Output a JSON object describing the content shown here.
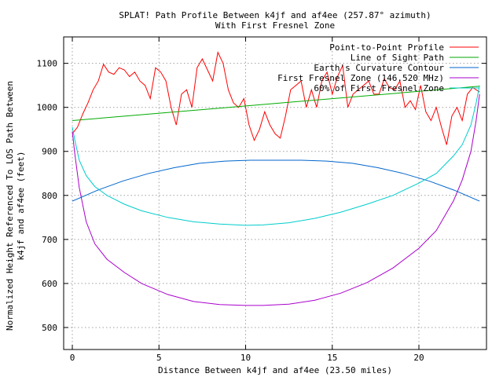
{
  "chart_data": {
    "type": "line",
    "title": "SPLAT! Path Profile Between k4jf and af4ee (257.87° azimuth)",
    "subtitle": "With First Fresnel Zone",
    "xlabel": "Distance Between k4jf and af4ee (23.50 miles)",
    "ylabel_line1": "Normalized Height Referenced To LOS Path Between",
    "ylabel_line2": "k4jf and af4ee (feet)",
    "xlim": [
      -0.5,
      23.9
    ],
    "ylim": [
      450,
      1160
    ],
    "x_ticks": [
      0,
      5,
      10,
      15,
      20
    ],
    "y_ticks": [
      500,
      600,
      700,
      800,
      900,
      1000,
      1100
    ],
    "grid": true,
    "legend_position": "top-right",
    "series": [
      {
        "name": "Point-to-Point Profile",
        "color": "#ff0000",
        "x": [
          0,
          0.3,
          0.6,
          0.9,
          1.2,
          1.5,
          1.8,
          2.1,
          2.4,
          2.7,
          3.0,
          3.3,
          3.6,
          3.9,
          4.2,
          4.5,
          4.8,
          5.1,
          5.4,
          5.7,
          6.0,
          6.3,
          6.6,
          6.9,
          7.2,
          7.5,
          7.8,
          8.1,
          8.4,
          8.7,
          9.0,
          9.3,
          9.6,
          9.9,
          10.2,
          10.5,
          10.8,
          11.1,
          11.4,
          11.7,
          12.0,
          12.3,
          12.6,
          12.9,
          13.2,
          13.5,
          13.8,
          14.1,
          14.4,
          14.7,
          15.0,
          15.3,
          15.6,
          15.9,
          16.2,
          16.5,
          16.8,
          17.1,
          17.4,
          17.7,
          18.0,
          18.3,
          18.6,
          18.9,
          19.2,
          19.5,
          19.8,
          20.1,
          20.4,
          20.7,
          21.0,
          21.3,
          21.6,
          21.9,
          22.2,
          22.5,
          22.8,
          23.1,
          23.5
        ],
        "values": [
          940,
          955,
          985,
          1010,
          1040,
          1060,
          1098,
          1080,
          1075,
          1090,
          1085,
          1070,
          1080,
          1060,
          1050,
          1020,
          1090,
          1080,
          1060,
          1000,
          960,
          1030,
          1040,
          1000,
          1090,
          1110,
          1085,
          1060,
          1125,
          1100,
          1040,
          1010,
          1000,
          1020,
          960,
          925,
          950,
          990,
          960,
          940,
          930,
          980,
          1040,
          1050,
          1060,
          1000,
          1040,
          1000,
          1060,
          1080,
          1030,
          1070,
          1095,
          1000,
          1030,
          1040,
          1050,
          1060,
          1030,
          1030,
          1065,
          1045,
          1040,
          1060,
          1000,
          1015,
          995,
          1050,
          990,
          970,
          1000,
          955,
          915,
          980,
          1000,
          970,
          1030,
          1045,
          1035
        ]
      },
      {
        "name": "Line of Sight Path",
        "color": "#00aa00",
        "x": [
          0,
          23.5
        ],
        "values": [
          970,
          1048
        ]
      },
      {
        "name": "Earth's Curvature Contour",
        "color": "#0066cc",
        "x": [
          0,
          1.47,
          2.94,
          4.41,
          5.88,
          7.34,
          8.81,
          10.28,
          11.75,
          13.22,
          14.69,
          16.16,
          17.63,
          19.09,
          20.56,
          22.03,
          23.5
        ],
        "values": [
          787,
          812,
          833,
          850,
          863,
          873,
          878,
          880,
          880,
          880,
          878,
          873,
          863,
          850,
          833,
          812,
          787
        ]
      },
      {
        "name": "First Fresnel Zone (146.520 MHz)",
        "color": "#aa00cc",
        "x": [
          0,
          0.15,
          0.4,
          0.8,
          1.3,
          2.0,
          3.0,
          4.0,
          5.5,
          7.0,
          8.5,
          10.0,
          11.0,
          12.5,
          14.0,
          15.5,
          17.0,
          18.5,
          20.0,
          21.0,
          22.0,
          22.5,
          23.0,
          23.3,
          23.5
        ],
        "values": [
          945,
          893,
          818,
          740,
          690,
          655,
          625,
          600,
          575,
          559,
          552,
          550,
          550,
          553,
          562,
          578,
          602,
          635,
          680,
          720,
          788,
          835,
          900,
          970,
          1030
        ]
      },
      {
        "name": "60% of First Fresnel Zone",
        "color": "#00cccc",
        "x": [
          0,
          0.15,
          0.4,
          0.8,
          1.3,
          2.0,
          3.0,
          4.0,
          5.5,
          7.0,
          8.5,
          10.0,
          11.0,
          12.5,
          14.0,
          15.5,
          17.0,
          18.5,
          20.0,
          21.0,
          22.0,
          22.5,
          23.0,
          23.3,
          23.5
        ],
        "values": [
          955,
          925,
          880,
          845,
          820,
          800,
          780,
          765,
          750,
          740,
          735,
          732,
          733,
          738,
          748,
          762,
          780,
          800,
          828,
          850,
          890,
          915,
          960,
          1010,
          1050
        ]
      }
    ]
  }
}
